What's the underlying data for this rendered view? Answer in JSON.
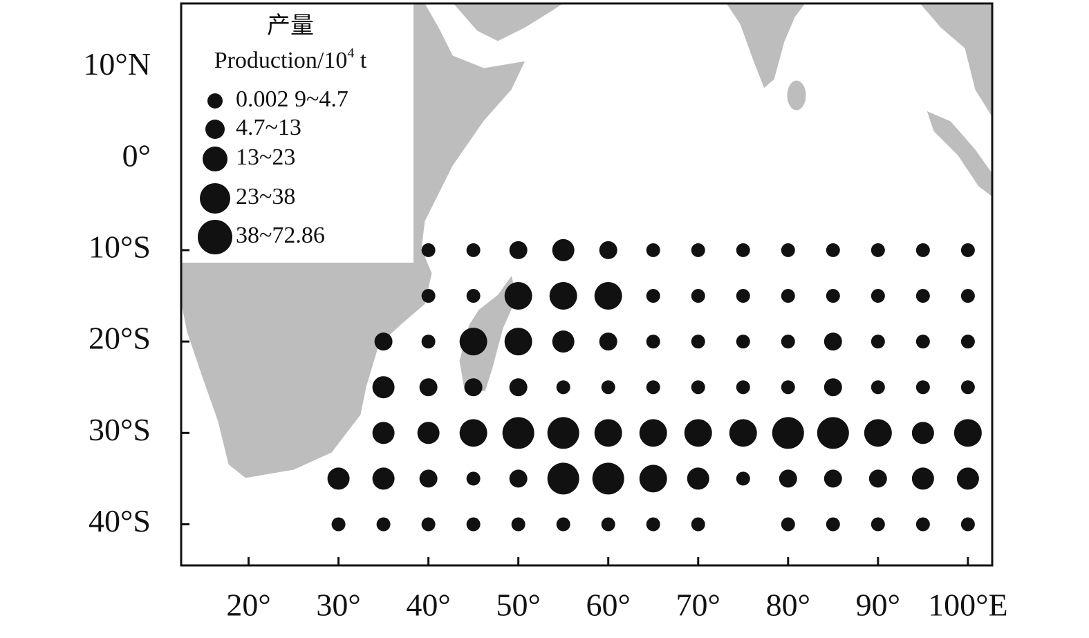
{
  "map": {
    "xlim": [
      12.5,
      102.7
    ],
    "ylim": [
      -44.5,
      17
    ],
    "xticks": [
      {
        "value": 20,
        "label": "20°"
      },
      {
        "value": 30,
        "label": "30°"
      },
      {
        "value": 40,
        "label": "40°"
      },
      {
        "value": 50,
        "label": "50°"
      },
      {
        "value": 60,
        "label": "60°"
      },
      {
        "value": 70,
        "label": "70°"
      },
      {
        "value": 80,
        "label": "80°"
      },
      {
        "value": 90,
        "label": "90°"
      },
      {
        "value": 100,
        "label": "100°E"
      }
    ],
    "yticks": [
      {
        "value": 10,
        "label": "10°N"
      },
      {
        "value": 0,
        "label": "0°"
      },
      {
        "value": -10,
        "label": "10°S"
      },
      {
        "value": -20,
        "label": "20°S"
      },
      {
        "value": -30,
        "label": "30°S"
      },
      {
        "value": -40,
        "label": "40°S"
      }
    ],
    "color": "#111111",
    "legend": {
      "title_cn": "产量",
      "title_en": [
        "Production/10",
        "4",
        " t"
      ],
      "items": [
        "0.002 9~4.7",
        "4.7~13",
        "13~23",
        "23~38",
        "38~72.86"
      ]
    },
    "rows": [
      {
        "lat": -10,
        "lon": [
          40,
          45,
          50,
          55,
          60,
          65,
          70,
          75,
          80,
          85,
          90,
          95,
          100
        ],
        "size_class": [
          0,
          0,
          1,
          2,
          1,
          0,
          0,
          0,
          0,
          0,
          0,
          0,
          0
        ]
      },
      {
        "lat": -15,
        "lon": [
          40,
          45,
          50,
          55,
          60,
          65,
          70,
          75,
          80,
          85,
          90,
          95,
          100
        ],
        "size_class": [
          0,
          0,
          3,
          3,
          3,
          0,
          0,
          0,
          0,
          0,
          0,
          0,
          0
        ]
      },
      {
        "lat": -20,
        "lon": [
          35,
          40,
          45,
          50,
          55,
          60,
          65,
          70,
          75,
          80,
          85,
          90,
          95,
          100
        ],
        "size_class": [
          1,
          0,
          3,
          3,
          2,
          1,
          0,
          0,
          0,
          0,
          1,
          0,
          0,
          0
        ]
      },
      {
        "lat": -25,
        "lon": [
          35,
          40,
          45,
          50,
          55,
          60,
          65,
          70,
          75,
          80,
          85,
          90,
          95,
          100
        ],
        "size_class": [
          2,
          1,
          1,
          1,
          0,
          0,
          0,
          0,
          0,
          0,
          1,
          0,
          0,
          0
        ]
      },
      {
        "lat": -30,
        "lon": [
          35,
          40,
          45,
          50,
          55,
          60,
          65,
          70,
          75,
          80,
          85,
          90,
          95,
          100
        ],
        "size_class": [
          2,
          2,
          3,
          4,
          4,
          3,
          3,
          3,
          3,
          4,
          4,
          3,
          2,
          3
        ]
      },
      {
        "lat": -35,
        "lon": [
          30,
          35,
          40,
          45,
          50,
          55,
          60,
          65,
          70,
          75,
          80,
          85,
          90,
          95,
          100
        ],
        "size_class": [
          2,
          2,
          1,
          0,
          1,
          4,
          4,
          3,
          2,
          0,
          1,
          1,
          1,
          2,
          2
        ]
      },
      {
        "lat": -40,
        "lon": [
          30,
          35,
          40,
          45,
          50,
          55,
          60,
          65,
          70,
          80,
          85,
          90,
          95,
          100
        ],
        "size_class": [
          0,
          0,
          0,
          0,
          0,
          0,
          0,
          0,
          0,
          0,
          0,
          0,
          0,
          0
        ]
      }
    ]
  }
}
